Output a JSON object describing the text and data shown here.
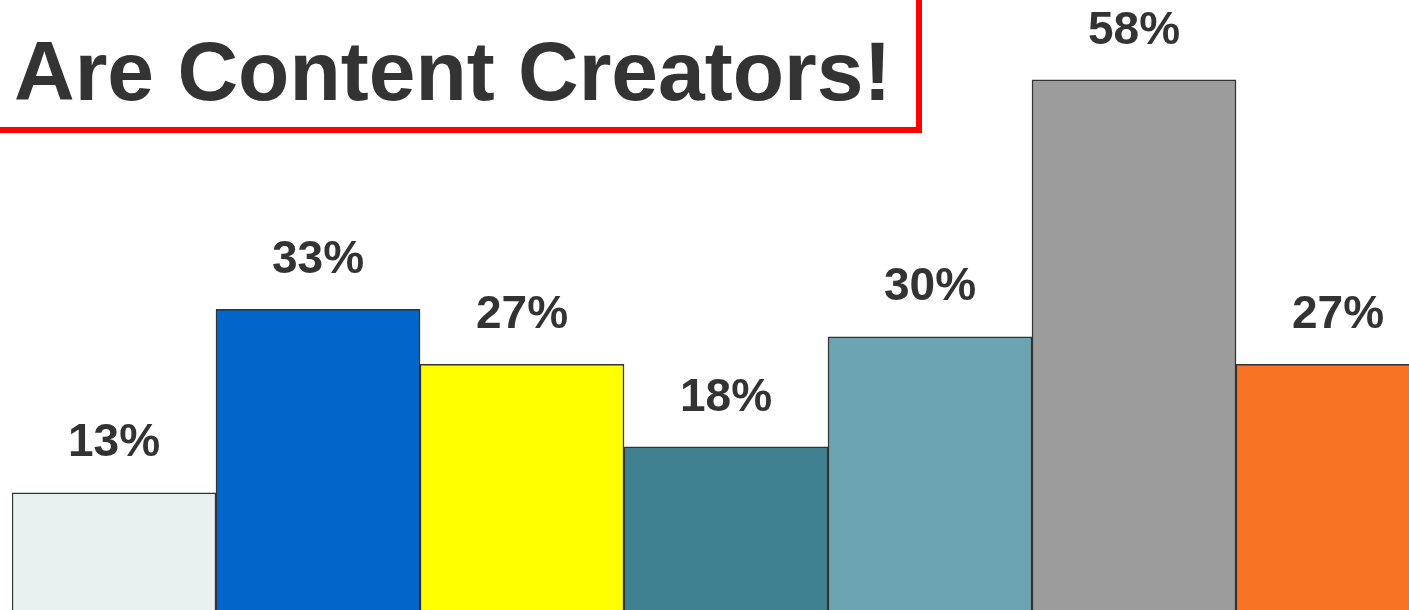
{
  "chart_data": {
    "type": "bar",
    "title": "Are Content Creators!",
    "categories": [
      null,
      null,
      null,
      null,
      null,
      null,
      null
    ],
    "values": [
      13,
      33,
      27,
      18,
      30,
      58,
      27
    ],
    "value_labels": [
      "13%",
      "33%",
      "27%",
      "18%",
      "30%",
      "58%",
      "27%"
    ],
    "colors": [
      "#e8f0f2",
      "#0066cc",
      "#ffff00",
      "#3f8090",
      "#6ca4b2",
      "#9c9c9c",
      "#f97324"
    ]
  }
}
